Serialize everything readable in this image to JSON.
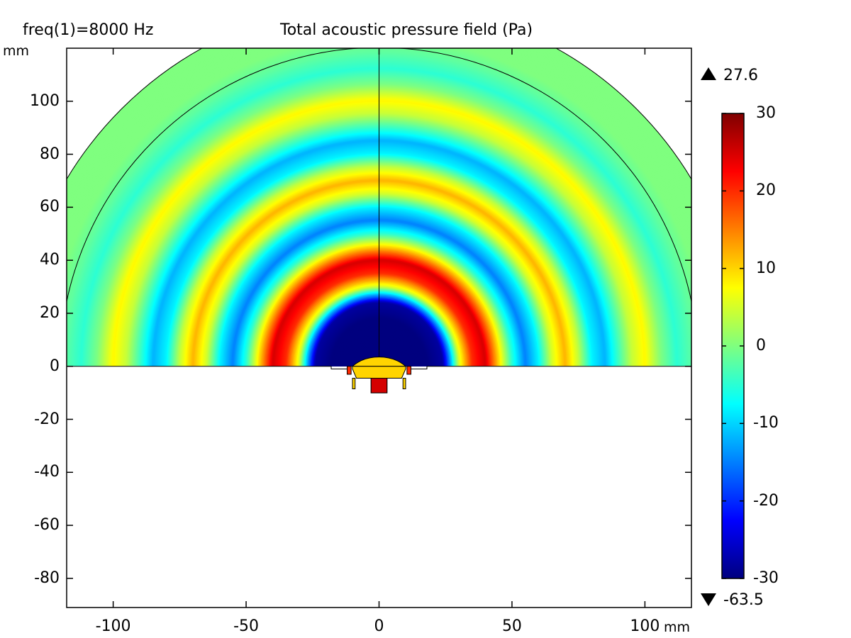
{
  "header": {
    "freq_label": "freq(1)=8000 Hz",
    "title": "Total acoustic pressure field (Pa)"
  },
  "axes": {
    "x_unit": "mm",
    "y_unit": "mm"
  },
  "colorbar": {
    "max_label": "27.6",
    "min_label": "-63.5",
    "range": [
      -30,
      30
    ],
    "ticks": [
      30,
      20,
      10,
      0,
      -10,
      -20,
      -30
    ],
    "tick_labels": [
      "30",
      "20",
      "10",
      "0",
      "-10",
      "-20",
      "-30"
    ],
    "colormap": "jet",
    "colormap_stops": [
      "#00007f",
      "#0000ff",
      "#007fff",
      "#00ffff",
      "#7fff7f",
      "#ffff00",
      "#ff7f00",
      "#ff0000",
      "#7f0000"
    ]
  },
  "chart_data": {
    "type": "heatmap",
    "title": "Total acoustic pressure field (Pa)",
    "annotation": "freq(1)=8000 Hz",
    "xlabel": "mm",
    "ylabel": "mm",
    "xlim": [
      -117.5,
      117.5
    ],
    "ylim": [
      -91,
      120
    ],
    "x_ticks": [
      -100,
      -50,
      0,
      50,
      100
    ],
    "x_tick_labels": [
      "-100",
      "-50",
      "0",
      "50",
      "100"
    ],
    "y_ticks": [
      100,
      80,
      60,
      40,
      20,
      0,
      -20,
      -40,
      -60,
      -80
    ],
    "y_tick_labels": [
      "100",
      "80",
      "60",
      "40",
      "20",
      "0",
      "-20",
      "-40",
      "-60",
      "-80"
    ],
    "field_max": 27.6,
    "field_min": -63.5,
    "radial_profile": {
      "r": [
        0,
        6,
        12,
        18,
        24,
        27,
        30,
        35,
        40,
        45,
        50,
        55,
        60,
        65,
        70,
        75,
        80,
        85,
        90,
        95,
        100,
        106,
        112,
        118,
        124
      ],
      "pressure": [
        -30,
        -30,
        -30,
        -30,
        -28,
        -12,
        5,
        20,
        25,
        10,
        -5,
        -15,
        -8,
        5,
        12,
        4,
        -8,
        -12,
        -4,
        4,
        8,
        0,
        -5,
        -2,
        0
      ]
    },
    "pml_inner_radius": 120,
    "domain_outer_radius": 137,
    "source_pressure": [
      10,
      25
    ]
  }
}
